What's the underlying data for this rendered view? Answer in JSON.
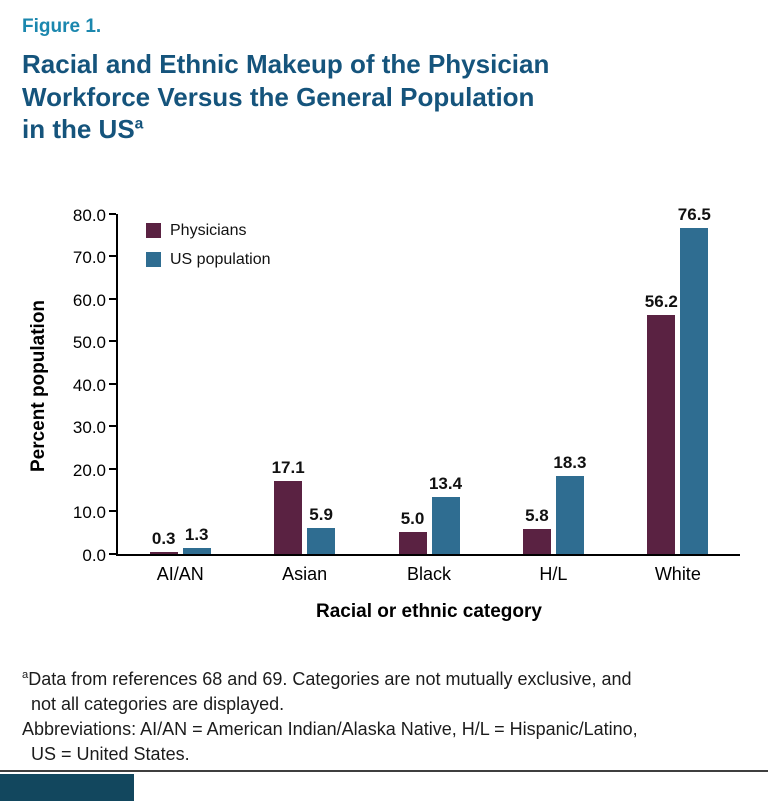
{
  "figure": {
    "label": "Figure 1.",
    "title_line1": "Racial and Ethnic Makeup of the Physician",
    "title_line2": "Workforce Versus the General Population",
    "title_line3": "in the US",
    "title_sup": "a"
  },
  "chart_data": {
    "type": "bar",
    "categories": [
      "AI/AN",
      "Asian",
      "Black",
      "H/L",
      "White"
    ],
    "series": [
      {
        "name": "Physicians",
        "color": "#5a2242",
        "values": [
          0.3,
          17.1,
          5.0,
          5.8,
          56.2
        ]
      },
      {
        "name": "US population",
        "color": "#2f6d91",
        "values": [
          1.3,
          5.9,
          13.4,
          18.3,
          76.5
        ]
      }
    ],
    "xlabel": "Racial or ethnic category",
    "ylabel": "Percent population",
    "ylim": [
      0,
      80
    ],
    "ytick_step": 10,
    "yticks": [
      "0.0",
      "10.0",
      "20.0",
      "30.0",
      "40.0",
      "50.0",
      "60.0",
      "70.0",
      "80.0"
    ],
    "grid": false,
    "legend_position": "top-left",
    "value_labels": true
  },
  "footnotes": {
    "note1_sup": "a",
    "note1_line1": "Data from references 68 and 69. Categories are not mutually exclusive, and",
    "note1_line2": "not all categories are displayed.",
    "note2_line1": "Abbreviations: AI/AN = American Indian/Alaska Native, H/L = Hispanic/Latino,",
    "note2_line2": "US = United States."
  },
  "colors": {
    "figure_label": "#1b87ae",
    "title": "#15547c",
    "physicians_bar": "#5a2242",
    "us_population_bar": "#2f6d91",
    "bottom_tab": "#12475e"
  }
}
